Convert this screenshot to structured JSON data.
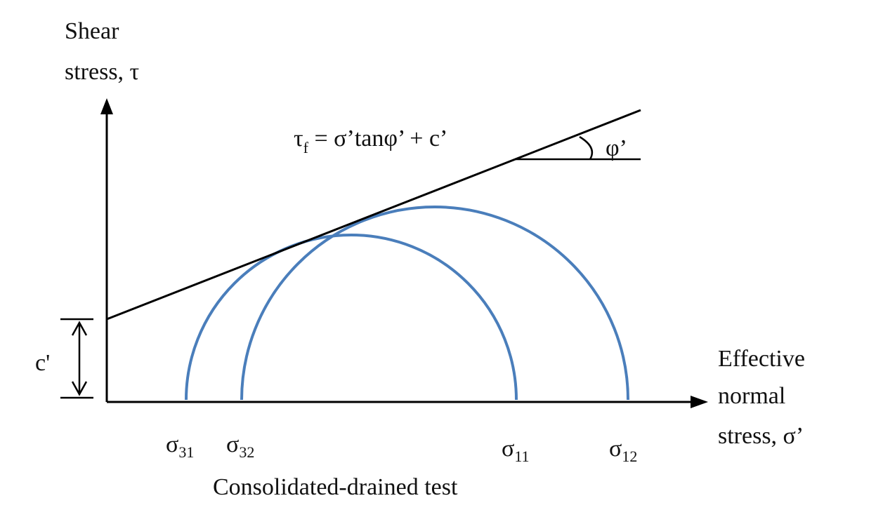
{
  "diagram": {
    "y_axis_label_line1": "Shear",
    "y_axis_label_line2": "stress, τ",
    "x_axis_label_line1": "Effective",
    "x_axis_label_line2": "normal",
    "x_axis_label_line3": "stress, σ’",
    "envelope": {
      "eq_tau": "τ",
      "eq_tau_sub": "f",
      "eq_rest": " = σ’tanφ’ + c’"
    },
    "angle_label": "φ’",
    "cohesion_label": "c'",
    "stress_labels": [
      {
        "base": "σ",
        "sub": "31"
      },
      {
        "base": "σ",
        "sub": "32"
      },
      {
        "base": "σ",
        "sub": "11"
      },
      {
        "base": "σ",
        "sub": "12"
      }
    ],
    "caption": "Consolidated-drained test",
    "colors": {
      "circle": "#4a7ebb",
      "line": "#000000"
    }
  }
}
